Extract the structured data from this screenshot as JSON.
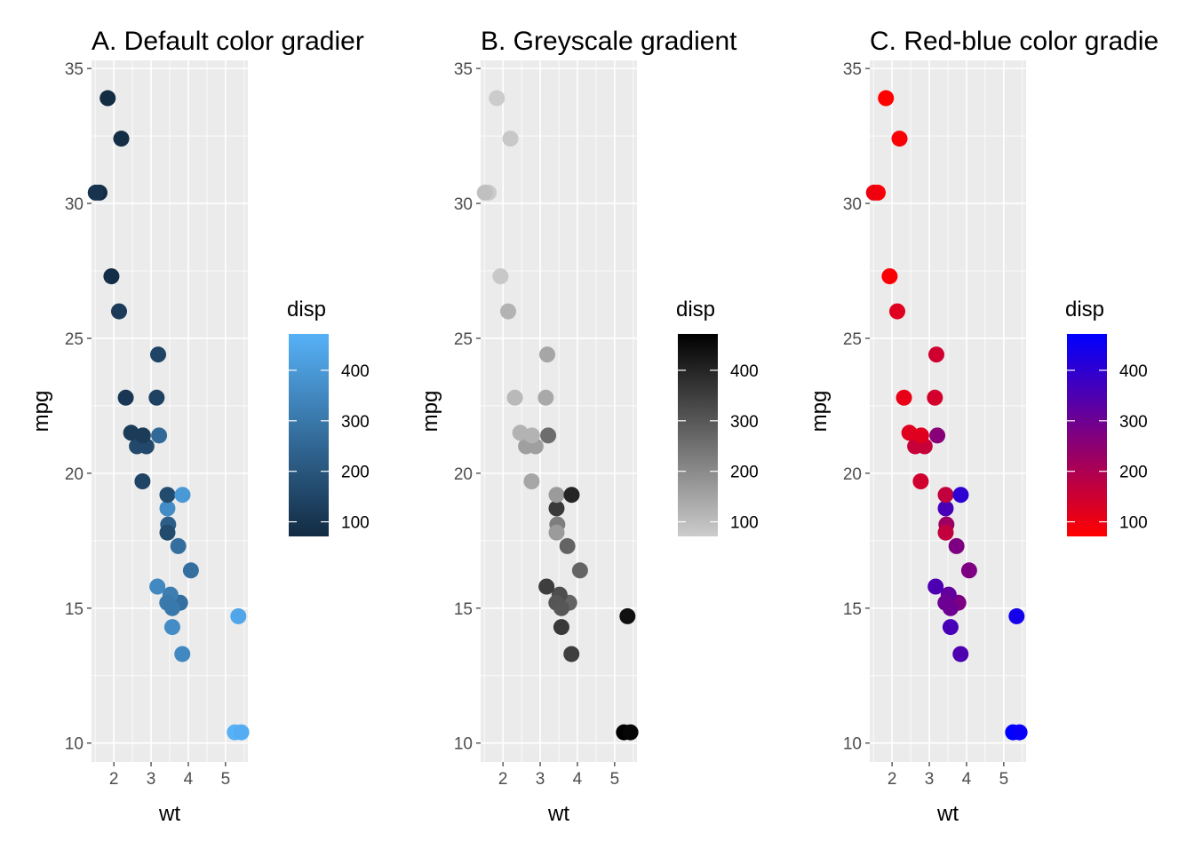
{
  "chart_data": [
    {
      "type": "scatter",
      "title": "A. Default color gradier",
      "xlabel": "wt",
      "ylabel": "mpg",
      "xlim": [
        1.4,
        5.6
      ],
      "ylim": [
        9.3,
        35.3
      ],
      "xticks": [
        2,
        3,
        4,
        5
      ],
      "yticks": [
        10,
        15,
        20,
        25,
        30,
        35
      ],
      "grid": true,
      "legend": {
        "title": "disp",
        "position": "right",
        "range": [
          71.1,
          472
        ],
        "ticks": [
          100,
          200,
          300,
          400
        ],
        "low_color": "#132B43",
        "high_color": "#56B1F7"
      },
      "points": [
        {
          "wt": 2.62,
          "mpg": 21.0,
          "disp": 160
        },
        {
          "wt": 2.875,
          "mpg": 21.0,
          "disp": 160
        },
        {
          "wt": 2.32,
          "mpg": 22.8,
          "disp": 108
        },
        {
          "wt": 3.215,
          "mpg": 21.4,
          "disp": 258
        },
        {
          "wt": 3.44,
          "mpg": 18.7,
          "disp": 360
        },
        {
          "wt": 3.46,
          "mpg": 18.1,
          "disp": 225
        },
        {
          "wt": 3.57,
          "mpg": 14.3,
          "disp": 360
        },
        {
          "wt": 3.19,
          "mpg": 24.4,
          "disp": 146.7
        },
        {
          "wt": 3.15,
          "mpg": 22.8,
          "disp": 140.8
        },
        {
          "wt": 3.44,
          "mpg": 19.2,
          "disp": 167.6
        },
        {
          "wt": 3.44,
          "mpg": 17.8,
          "disp": 167.6
        },
        {
          "wt": 4.07,
          "mpg": 16.4,
          "disp": 275.8
        },
        {
          "wt": 3.73,
          "mpg": 17.3,
          "disp": 275.8
        },
        {
          "wt": 3.78,
          "mpg": 15.2,
          "disp": 275.8
        },
        {
          "wt": 5.25,
          "mpg": 10.4,
          "disp": 472
        },
        {
          "wt": 5.424,
          "mpg": 10.4,
          "disp": 460
        },
        {
          "wt": 5.345,
          "mpg": 14.7,
          "disp": 440
        },
        {
          "wt": 2.2,
          "mpg": 32.4,
          "disp": 78.7
        },
        {
          "wt": 1.615,
          "mpg": 30.4,
          "disp": 75.7
        },
        {
          "wt": 1.835,
          "mpg": 33.9,
          "disp": 71.1
        },
        {
          "wt": 2.465,
          "mpg": 21.5,
          "disp": 120.1
        },
        {
          "wt": 3.52,
          "mpg": 15.5,
          "disp": 318
        },
        {
          "wt": 3.435,
          "mpg": 15.2,
          "disp": 304
        },
        {
          "wt": 3.84,
          "mpg": 13.3,
          "disp": 350
        },
        {
          "wt": 3.845,
          "mpg": 19.2,
          "disp": 400
        },
        {
          "wt": 1.935,
          "mpg": 27.3,
          "disp": 79
        },
        {
          "wt": 2.14,
          "mpg": 26.0,
          "disp": 120.3
        },
        {
          "wt": 1.513,
          "mpg": 30.4,
          "disp": 95.1
        },
        {
          "wt": 3.17,
          "mpg": 15.8,
          "disp": 351
        },
        {
          "wt": 2.77,
          "mpg": 19.7,
          "disp": 145
        },
        {
          "wt": 3.57,
          "mpg": 15.0,
          "disp": 301
        },
        {
          "wt": 2.78,
          "mpg": 21.4,
          "disp": 121
        }
      ]
    },
    {
      "type": "scatter",
      "title": "B. Greyscale gradient",
      "xlabel": "wt",
      "ylabel": "mpg",
      "xlim": [
        1.4,
        5.6
      ],
      "ylim": [
        9.3,
        35.3
      ],
      "xticks": [
        2,
        3,
        4,
        5
      ],
      "yticks": [
        10,
        15,
        20,
        25,
        30,
        35
      ],
      "grid": true,
      "legend": {
        "title": "disp",
        "position": "right",
        "range": [
          71.1,
          472
        ],
        "ticks": [
          100,
          200,
          300,
          400
        ],
        "low_color": "#CCCCCC",
        "high_color": "#000000"
      },
      "points": [
        {
          "wt": 2.62,
          "mpg": 21.0,
          "disp": 160
        },
        {
          "wt": 2.875,
          "mpg": 21.0,
          "disp": 160
        },
        {
          "wt": 2.32,
          "mpg": 22.8,
          "disp": 108
        },
        {
          "wt": 3.215,
          "mpg": 21.4,
          "disp": 258
        },
        {
          "wt": 3.44,
          "mpg": 18.7,
          "disp": 360
        },
        {
          "wt": 3.46,
          "mpg": 18.1,
          "disp": 225
        },
        {
          "wt": 3.57,
          "mpg": 14.3,
          "disp": 360
        },
        {
          "wt": 3.19,
          "mpg": 24.4,
          "disp": 146.7
        },
        {
          "wt": 3.15,
          "mpg": 22.8,
          "disp": 140.8
        },
        {
          "wt": 3.44,
          "mpg": 19.2,
          "disp": 167.6
        },
        {
          "wt": 3.44,
          "mpg": 17.8,
          "disp": 167.6
        },
        {
          "wt": 4.07,
          "mpg": 16.4,
          "disp": 275.8
        },
        {
          "wt": 3.73,
          "mpg": 17.3,
          "disp": 275.8
        },
        {
          "wt": 3.78,
          "mpg": 15.2,
          "disp": 275.8
        },
        {
          "wt": 5.25,
          "mpg": 10.4,
          "disp": 472
        },
        {
          "wt": 5.424,
          "mpg": 10.4,
          "disp": 460
        },
        {
          "wt": 5.345,
          "mpg": 14.7,
          "disp": 440
        },
        {
          "wt": 2.2,
          "mpg": 32.4,
          "disp": 78.7
        },
        {
          "wt": 1.615,
          "mpg": 30.4,
          "disp": 75.7
        },
        {
          "wt": 1.835,
          "mpg": 33.9,
          "disp": 71.1
        },
        {
          "wt": 2.465,
          "mpg": 21.5,
          "disp": 120.1
        },
        {
          "wt": 3.52,
          "mpg": 15.5,
          "disp": 318
        },
        {
          "wt": 3.435,
          "mpg": 15.2,
          "disp": 304
        },
        {
          "wt": 3.84,
          "mpg": 13.3,
          "disp": 350
        },
        {
          "wt": 3.845,
          "mpg": 19.2,
          "disp": 400
        },
        {
          "wt": 1.935,
          "mpg": 27.3,
          "disp": 79
        },
        {
          "wt": 2.14,
          "mpg": 26.0,
          "disp": 120.3
        },
        {
          "wt": 1.513,
          "mpg": 30.4,
          "disp": 95.1
        },
        {
          "wt": 3.17,
          "mpg": 15.8,
          "disp": 351
        },
        {
          "wt": 2.77,
          "mpg": 19.7,
          "disp": 145
        },
        {
          "wt": 3.57,
          "mpg": 15.0,
          "disp": 301
        },
        {
          "wt": 2.78,
          "mpg": 21.4,
          "disp": 121
        }
      ]
    },
    {
      "type": "scatter",
      "title": "C. Red-blue color gradie",
      "xlabel": "wt",
      "ylabel": "mpg",
      "xlim": [
        1.4,
        5.6
      ],
      "ylim": [
        9.3,
        35.3
      ],
      "xticks": [
        2,
        3,
        4,
        5
      ],
      "yticks": [
        10,
        15,
        20,
        25,
        30,
        35
      ],
      "grid": true,
      "legend": {
        "title": "disp",
        "position": "right",
        "range": [
          71.1,
          472
        ],
        "ticks": [
          100,
          200,
          300,
          400
        ],
        "low_color": "#FF0000",
        "high_color": "#0000FF"
      },
      "points": [
        {
          "wt": 2.62,
          "mpg": 21.0,
          "disp": 160
        },
        {
          "wt": 2.875,
          "mpg": 21.0,
          "disp": 160
        },
        {
          "wt": 2.32,
          "mpg": 22.8,
          "disp": 108
        },
        {
          "wt": 3.215,
          "mpg": 21.4,
          "disp": 258
        },
        {
          "wt": 3.44,
          "mpg": 18.7,
          "disp": 360
        },
        {
          "wt": 3.46,
          "mpg": 18.1,
          "disp": 225
        },
        {
          "wt": 3.57,
          "mpg": 14.3,
          "disp": 360
        },
        {
          "wt": 3.19,
          "mpg": 24.4,
          "disp": 146.7
        },
        {
          "wt": 3.15,
          "mpg": 22.8,
          "disp": 140.8
        },
        {
          "wt": 3.44,
          "mpg": 19.2,
          "disp": 167.6
        },
        {
          "wt": 3.44,
          "mpg": 17.8,
          "disp": 167.6
        },
        {
          "wt": 4.07,
          "mpg": 16.4,
          "disp": 275.8
        },
        {
          "wt": 3.73,
          "mpg": 17.3,
          "disp": 275.8
        },
        {
          "wt": 3.78,
          "mpg": 15.2,
          "disp": 275.8
        },
        {
          "wt": 5.25,
          "mpg": 10.4,
          "disp": 472
        },
        {
          "wt": 5.424,
          "mpg": 10.4,
          "disp": 460
        },
        {
          "wt": 5.345,
          "mpg": 14.7,
          "disp": 440
        },
        {
          "wt": 2.2,
          "mpg": 32.4,
          "disp": 78.7
        },
        {
          "wt": 1.615,
          "mpg": 30.4,
          "disp": 75.7
        },
        {
          "wt": 1.835,
          "mpg": 33.9,
          "disp": 71.1
        },
        {
          "wt": 2.465,
          "mpg": 21.5,
          "disp": 120.1
        },
        {
          "wt": 3.52,
          "mpg": 15.5,
          "disp": 318
        },
        {
          "wt": 3.435,
          "mpg": 15.2,
          "disp": 304
        },
        {
          "wt": 3.84,
          "mpg": 13.3,
          "disp": 350
        },
        {
          "wt": 3.845,
          "mpg": 19.2,
          "disp": 400
        },
        {
          "wt": 1.935,
          "mpg": 27.3,
          "disp": 79
        },
        {
          "wt": 2.14,
          "mpg": 26.0,
          "disp": 120.3
        },
        {
          "wt": 1.513,
          "mpg": 30.4,
          "disp": 95.1
        },
        {
          "wt": 3.17,
          "mpg": 15.8,
          "disp": 351
        },
        {
          "wt": 2.77,
          "mpg": 19.7,
          "disp": 145
        },
        {
          "wt": 3.57,
          "mpg": 15.0,
          "disp": 301
        },
        {
          "wt": 2.78,
          "mpg": 21.4,
          "disp": 121
        }
      ]
    }
  ]
}
